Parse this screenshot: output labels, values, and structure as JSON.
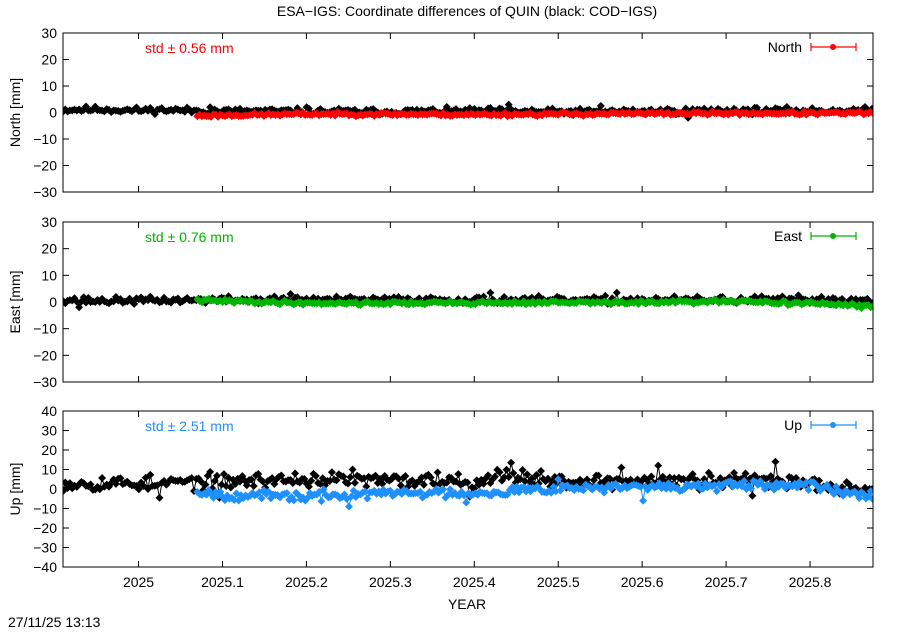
{
  "title": "ESA−IGS: Coordinate differences of QUIN (black: COD−IGS)",
  "timestamp": "27/11/25 13:13",
  "xlabel": "YEAR",
  "chart_data": {
    "type": "scatter",
    "x_range": [
      2024.91,
      2025.875
    ],
    "x_ticks": [
      2025,
      2025.1,
      2025.2,
      2025.3,
      2025.4,
      2025.5,
      2025.6,
      2025.7,
      2025.8
    ],
    "x_tick_labels": [
      "2025",
      "2025.1",
      "2025.2",
      "2025.3",
      "2025.4",
      "2025.5",
      "2025.6",
      "2025.7",
      "2025.8"
    ],
    "panels": [
      {
        "component": "North",
        "ylabel": "North [mm]",
        "ylim": [
          -30,
          30
        ],
        "yticks": [
          -30,
          -20,
          -10,
          0,
          10,
          20,
          30
        ],
        "ytick_labels": [
          "−30",
          "−20",
          "−10",
          "0",
          "10",
          "20",
          "30"
        ],
        "std_label": "std ± 0.56 mm",
        "legend": "North",
        "color": "#ff0000",
        "black": {
          "start": 2024.91,
          "end": 2025.875,
          "anchors": [
            [
              2024.91,
              1.0
            ],
            [
              2024.95,
              1.2
            ],
            [
              2024.99,
              0.8
            ],
            [
              2025.03,
              1.0
            ],
            [
              2025.07,
              0.6
            ],
            [
              2025.1,
              0.5
            ],
            [
              2025.2,
              0.4
            ],
            [
              2025.3,
              0.3
            ],
            [
              2025.4,
              0.6
            ],
            [
              2025.5,
              0.2
            ],
            [
              2025.6,
              0.4
            ],
            [
              2025.7,
              0.8
            ],
            [
              2025.8,
              0.6
            ],
            [
              2025.875,
              0.8
            ]
          ],
          "noise": 0.8,
          "seed": 11,
          "spikes": [
            [
              2025.44,
              3.0
            ],
            [
              2025.55,
              2.5
            ],
            [
              2025.2,
              2.0
            ],
            [
              2025.655,
              -2.0
            ],
            [
              2025.085,
              2.0
            ]
          ]
        },
        "colored": {
          "start": 2025.07,
          "end": 2025.875,
          "anchors": [
            [
              2025.07,
              -1.2
            ],
            [
              2025.2,
              -0.6
            ],
            [
              2025.3,
              -0.6
            ],
            [
              2025.4,
              -0.8
            ],
            [
              2025.5,
              -0.6
            ],
            [
              2025.6,
              -0.4
            ],
            [
              2025.7,
              -0.3
            ],
            [
              2025.8,
              -0.3
            ],
            [
              2025.875,
              -0.2
            ]
          ],
          "noise": 0.45,
          "seed": 23,
          "spikes": []
        }
      },
      {
        "component": "East",
        "ylabel": "East [mm]",
        "ylim": [
          -30,
          30
        ],
        "yticks": [
          -30,
          -20,
          -10,
          0,
          10,
          20,
          30
        ],
        "ytick_labels": [
          "−30",
          "−20",
          "−10",
          "0",
          "10",
          "20",
          "30"
        ],
        "std_label": "std ± 0.76 mm",
        "legend": "East",
        "color": "#00b400",
        "black": {
          "start": 2024.91,
          "end": 2025.875,
          "anchors": [
            [
              2024.91,
              1.0
            ],
            [
              2024.95,
              0.4
            ],
            [
              2025.0,
              0.6
            ],
            [
              2025.1,
              0.8
            ],
            [
              2025.2,
              0.8
            ],
            [
              2025.3,
              0.8
            ],
            [
              2025.4,
              0.8
            ],
            [
              2025.5,
              0.6
            ],
            [
              2025.6,
              0.8
            ],
            [
              2025.7,
              0.8
            ],
            [
              2025.8,
              0.8
            ],
            [
              2025.875,
              0.6
            ]
          ],
          "noise": 0.9,
          "seed": 37,
          "spikes": [
            [
              2025.42,
              3.5
            ],
            [
              2025.57,
              3.5
            ],
            [
              2025.18,
              3.0
            ],
            [
              2025.785,
              2.5
            ],
            [
              2024.93,
              -2.0
            ]
          ]
        },
        "colored": {
          "start": 2025.07,
          "end": 2025.875,
          "anchors": [
            [
              2025.07,
              0.6
            ],
            [
              2025.2,
              -0.4
            ],
            [
              2025.3,
              -0.4
            ],
            [
              2025.4,
              -0.3
            ],
            [
              2025.5,
              -0.2
            ],
            [
              2025.6,
              -0.2
            ],
            [
              2025.7,
              0.2
            ],
            [
              2025.8,
              -0.4
            ],
            [
              2025.875,
              -1.8
            ]
          ],
          "noise": 0.5,
          "seed": 41,
          "spikes": []
        }
      },
      {
        "component": "Up",
        "ylabel": "Up [mm]",
        "ylim": [
          -40,
          40
        ],
        "yticks": [
          -40,
          -30,
          -20,
          -10,
          0,
          10,
          20,
          30,
          40
        ],
        "ytick_labels": [
          "−40",
          "−30",
          "−20",
          "−10",
          "0",
          "10",
          "20",
          "30",
          "40"
        ],
        "std_label": "std ± 2.51 mm",
        "legend": "Up",
        "color": "#1e90ff",
        "black": {
          "start": 2024.91,
          "end": 2025.875,
          "anchors": [
            [
              2024.91,
              3.0
            ],
            [
              2025.0,
              3.0
            ],
            [
              2025.1,
              4.0
            ],
            [
              2025.2,
              5.0
            ],
            [
              2025.3,
              4.0
            ],
            [
              2025.4,
              5.0
            ],
            [
              2025.45,
              7.0
            ],
            [
              2025.5,
              4.0
            ],
            [
              2025.6,
              4.0
            ],
            [
              2025.7,
              4.0
            ],
            [
              2025.75,
              5.0
            ],
            [
              2025.8,
              3.0
            ],
            [
              2025.875,
              0.0
            ]
          ],
          "noise": 2.8,
          "seed": 53,
          "spikes": [
            [
              2025.445,
              13.5
            ],
            [
              2025.76,
              14.0
            ],
            [
              2025.575,
              11.0
            ],
            [
              2025.62,
              12.0
            ],
            [
              2025.025,
              -4.5
            ],
            [
              2025.095,
              -4.5
            ],
            [
              2025.395,
              -4.0
            ],
            [
              2025.73,
              -3.5
            ],
            [
              2025.355,
              8.5
            ],
            [
              2025.255,
              10.0
            ]
          ]
        },
        "colored": {
          "start": 2025.07,
          "end": 2025.875,
          "anchors": [
            [
              2025.07,
              -1.0
            ],
            [
              2025.1,
              -3.0
            ],
            [
              2025.2,
              -4.0
            ],
            [
              2025.3,
              -2.0
            ],
            [
              2025.4,
              -2.0
            ],
            [
              2025.5,
              0.5
            ],
            [
              2025.6,
              1.0
            ],
            [
              2025.7,
              1.5
            ],
            [
              2025.8,
              1.5
            ],
            [
              2025.875,
              -3.0
            ]
          ],
          "noise": 1.8,
          "seed": 67,
          "spikes": [
            [
              2025.25,
              -9.0
            ],
            [
              2025.39,
              -7.0
            ],
            [
              2025.6,
              -6.0
            ],
            [
              2025.5,
              5.0
            ]
          ]
        }
      }
    ]
  }
}
